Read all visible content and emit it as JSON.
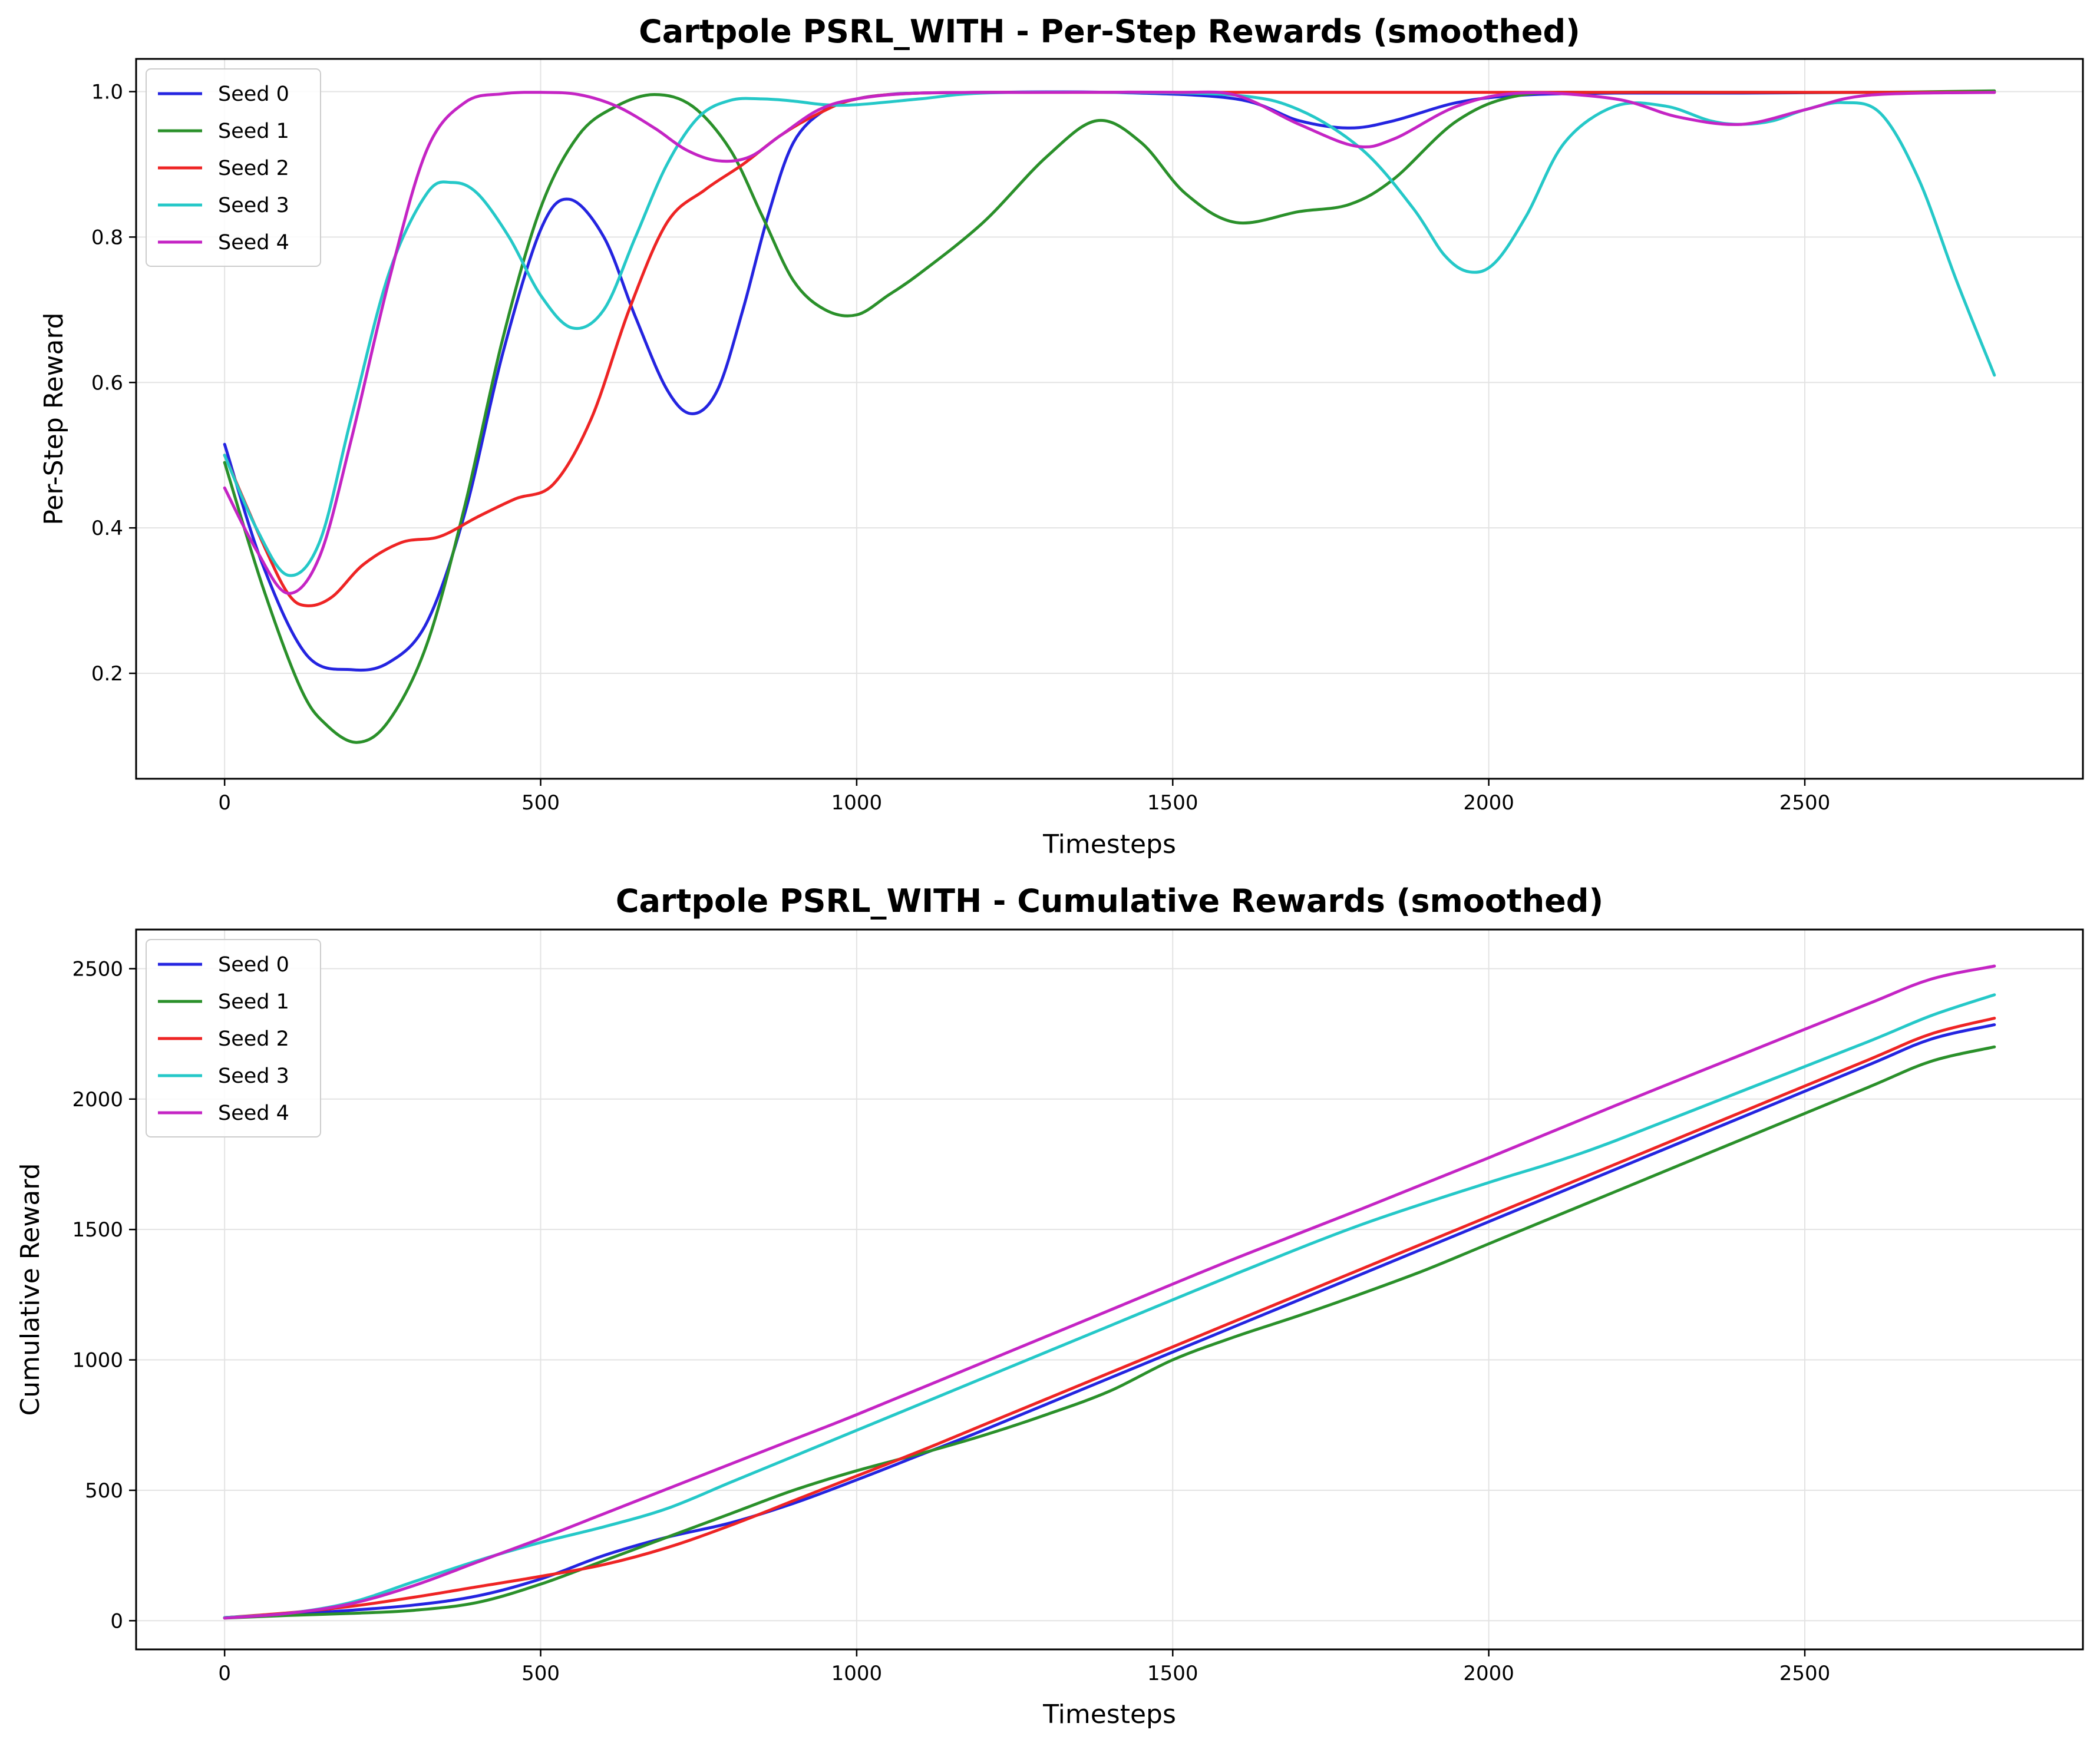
{
  "chart_data": [
    {
      "type": "line",
      "title": "Cartpole PSRL_WITH - Per-Step Rewards (smoothed)",
      "xlabel": "Timesteps",
      "ylabel": "Per-Step Reward",
      "xlim": [
        -140,
        2940
      ],
      "ylim": [
        0.055,
        1.045
      ],
      "xticks": [
        0,
        500,
        1000,
        1500,
        2000,
        2500
      ],
      "yticks": [
        0.2,
        0.4,
        0.6,
        0.8,
        1.0
      ],
      "ytick_decimals": 1,
      "grid": true,
      "legend_position": "top-left",
      "series": [
        {
          "name": "Seed 0",
          "color": "#2424e0",
          "x": [
            0,
            60,
            130,
            200,
            260,
            320,
            380,
            440,
            500,
            545,
            600,
            650,
            700,
            740,
            780,
            820,
            860,
            900,
            950,
            1000,
            1050,
            1100,
            1200,
            1400,
            1600,
            1700,
            1780,
            1850,
            1950,
            2050,
            2200,
            2400,
            2600,
            2800
          ],
          "y": [
            0.515,
            0.35,
            0.225,
            0.205,
            0.215,
            0.27,
            0.42,
            0.64,
            0.81,
            0.852,
            0.8,
            0.69,
            0.59,
            0.557,
            0.59,
            0.7,
            0.83,
            0.93,
            0.975,
            0.99,
            0.996,
            0.998,
            0.999,
            0.999,
            0.99,
            0.96,
            0.95,
            0.96,
            0.985,
            0.995,
            0.998,
            0.998,
            0.999,
            0.999
          ]
        },
        {
          "name": "Seed 1",
          "color": "#2a902a",
          "x": [
            0,
            60,
            120,
            160,
            210,
            260,
            320,
            380,
            440,
            500,
            560,
            620,
            680,
            740,
            800,
            850,
            900,
            950,
            1000,
            1050,
            1100,
            1200,
            1300,
            1380,
            1450,
            1520,
            1600,
            1700,
            1780,
            1850,
            1950,
            2050,
            2200,
            2400,
            2600,
            2800
          ],
          "y": [
            0.49,
            0.32,
            0.18,
            0.13,
            0.105,
            0.135,
            0.24,
            0.43,
            0.66,
            0.84,
            0.94,
            0.98,
            0.996,
            0.98,
            0.92,
            0.83,
            0.74,
            0.7,
            0.693,
            0.72,
            0.75,
            0.82,
            0.91,
            0.96,
            0.93,
            0.86,
            0.82,
            0.835,
            0.845,
            0.88,
            0.96,
            0.995,
            0.999,
            0.999,
            0.999,
            1.001
          ]
        },
        {
          "name": "Seed 2",
          "color": "#ee2424",
          "x": [
            0,
            60,
            100,
            130,
            170,
            220,
            280,
            340,
            400,
            460,
            520,
            580,
            640,
            700,
            760,
            820,
            880,
            940,
            1000,
            1100,
            1300,
            1600,
            2000,
            2400,
            2800
          ],
          "y": [
            0.5,
            0.38,
            0.31,
            0.293,
            0.305,
            0.35,
            0.38,
            0.388,
            0.415,
            0.44,
            0.46,
            0.55,
            0.7,
            0.82,
            0.865,
            0.9,
            0.94,
            0.97,
            0.99,
            0.998,
            0.999,
            0.999,
            0.999,
            0.999,
            0.999
          ]
        },
        {
          "name": "Seed 3",
          "color": "#25c8c8",
          "x": [
            0,
            50,
            100,
            150,
            200,
            260,
            320,
            360,
            400,
            450,
            500,
            550,
            600,
            650,
            700,
            750,
            800,
            850,
            900,
            950,
            1000,
            1100,
            1200,
            1400,
            1600,
            1700,
            1800,
            1880,
            1930,
            1970,
            2010,
            2060,
            2120,
            2200,
            2280,
            2350,
            2400,
            2450,
            2500,
            2560,
            2620,
            2680,
            2740,
            2800
          ],
          "y": [
            0.5,
            0.4,
            0.335,
            0.38,
            0.55,
            0.75,
            0.86,
            0.875,
            0.86,
            0.8,
            0.72,
            0.675,
            0.7,
            0.8,
            0.9,
            0.965,
            0.988,
            0.99,
            0.987,
            0.982,
            0.982,
            0.99,
            0.998,
            0.999,
            0.995,
            0.975,
            0.92,
            0.84,
            0.775,
            0.752,
            0.765,
            0.83,
            0.93,
            0.98,
            0.98,
            0.96,
            0.955,
            0.96,
            0.975,
            0.985,
            0.97,
            0.88,
            0.74,
            0.61
          ]
        },
        {
          "name": "Seed 4",
          "color": "#c424c4",
          "x": [
            0,
            50,
            100,
            150,
            200,
            260,
            320,
            380,
            440,
            500,
            560,
            620,
            680,
            730,
            780,
            830,
            880,
            940,
            1000,
            1100,
            1300,
            1500,
            1600,
            1700,
            1790,
            1850,
            1950,
            2050,
            2200,
            2300,
            2400,
            2500,
            2600,
            2800
          ],
          "y": [
            0.455,
            0.37,
            0.31,
            0.36,
            0.52,
            0.74,
            0.92,
            0.985,
            0.997,
            0.999,
            0.996,
            0.98,
            0.95,
            0.92,
            0.905,
            0.91,
            0.94,
            0.975,
            0.99,
            0.998,
            0.999,
            0.999,
            0.995,
            0.955,
            0.925,
            0.935,
            0.98,
            0.998,
            0.99,
            0.965,
            0.955,
            0.975,
            0.995,
            0.999
          ]
        }
      ]
    },
    {
      "type": "line",
      "title": "Cartpole PSRL_WITH - Cumulative Rewards (smoothed)",
      "xlabel": "Timesteps",
      "ylabel": "Cumulative Reward",
      "xlim": [
        -140,
        2940
      ],
      "ylim": [
        -110,
        2650
      ],
      "xticks": [
        0,
        500,
        1000,
        1500,
        2000,
        2500
      ],
      "yticks": [
        0,
        500,
        1000,
        1500,
        2000,
        2500
      ],
      "ytick_decimals": 0,
      "grid": true,
      "legend_position": "top-left",
      "series": [
        {
          "name": "Seed 0",
          "color": "#2424e0",
          "x": [
            0,
            100,
            200,
            300,
            400,
            500,
            600,
            700,
            800,
            900,
            1000,
            1100,
            1200,
            1400,
            1600,
            1800,
            2000,
            2200,
            2400,
            2600,
            2700,
            2800
          ],
          "y": [
            12,
            25,
            40,
            60,
            95,
            160,
            250,
            320,
            375,
            450,
            540,
            635,
            730,
            930,
            1130,
            1330,
            1530,
            1730,
            1930,
            2130,
            2230,
            2285
          ]
        },
        {
          "name": "Seed 1",
          "color": "#2a902a",
          "x": [
            0,
            100,
            200,
            300,
            400,
            500,
            600,
            700,
            800,
            900,
            1000,
            1100,
            1200,
            1300,
            1400,
            1500,
            1600,
            1700,
            1800,
            1900,
            2000,
            2200,
            2400,
            2600,
            2700,
            2800
          ],
          "y": [
            10,
            20,
            28,
            40,
            70,
            140,
            230,
            320,
            410,
            500,
            575,
            640,
            710,
            790,
            880,
            1000,
            1090,
            1170,
            1255,
            1345,
            1445,
            1645,
            1845,
            2045,
            2145,
            2200
          ]
        },
        {
          "name": "Seed 2",
          "color": "#ee2424",
          "x": [
            0,
            100,
            200,
            300,
            400,
            500,
            600,
            700,
            800,
            900,
            1000,
            1100,
            1200,
            1400,
            1600,
            1800,
            2000,
            2200,
            2400,
            2600,
            2700,
            2800
          ],
          "y": [
            12,
            30,
            55,
            90,
            130,
            170,
            215,
            280,
            365,
            460,
            555,
            650,
            750,
            950,
            1150,
            1350,
            1550,
            1750,
            1950,
            2150,
            2250,
            2310
          ]
        },
        {
          "name": "Seed 3",
          "color": "#25c8c8",
          "x": [
            0,
            100,
            200,
            300,
            400,
            500,
            600,
            700,
            800,
            900,
            1000,
            1200,
            1400,
            1600,
            1800,
            2000,
            2100,
            2200,
            2400,
            2600,
            2700,
            2800
          ],
          "y": [
            12,
            28,
            70,
            150,
            230,
            300,
            360,
            430,
            530,
            630,
            730,
            930,
            1130,
            1330,
            1520,
            1680,
            1755,
            1840,
            2030,
            2220,
            2320,
            2400
          ]
        },
        {
          "name": "Seed 4",
          "color": "#c424c4",
          "x": [
            0,
            100,
            200,
            300,
            400,
            500,
            600,
            700,
            800,
            900,
            1000,
            1200,
            1400,
            1600,
            1800,
            2000,
            2200,
            2400,
            2600,
            2700,
            2800
          ],
          "y": [
            10,
            28,
            65,
            135,
            225,
            315,
            410,
            505,
            600,
            695,
            790,
            990,
            1190,
            1390,
            1580,
            1775,
            1975,
            2170,
            2365,
            2460,
            2510
          ]
        }
      ]
    }
  ]
}
